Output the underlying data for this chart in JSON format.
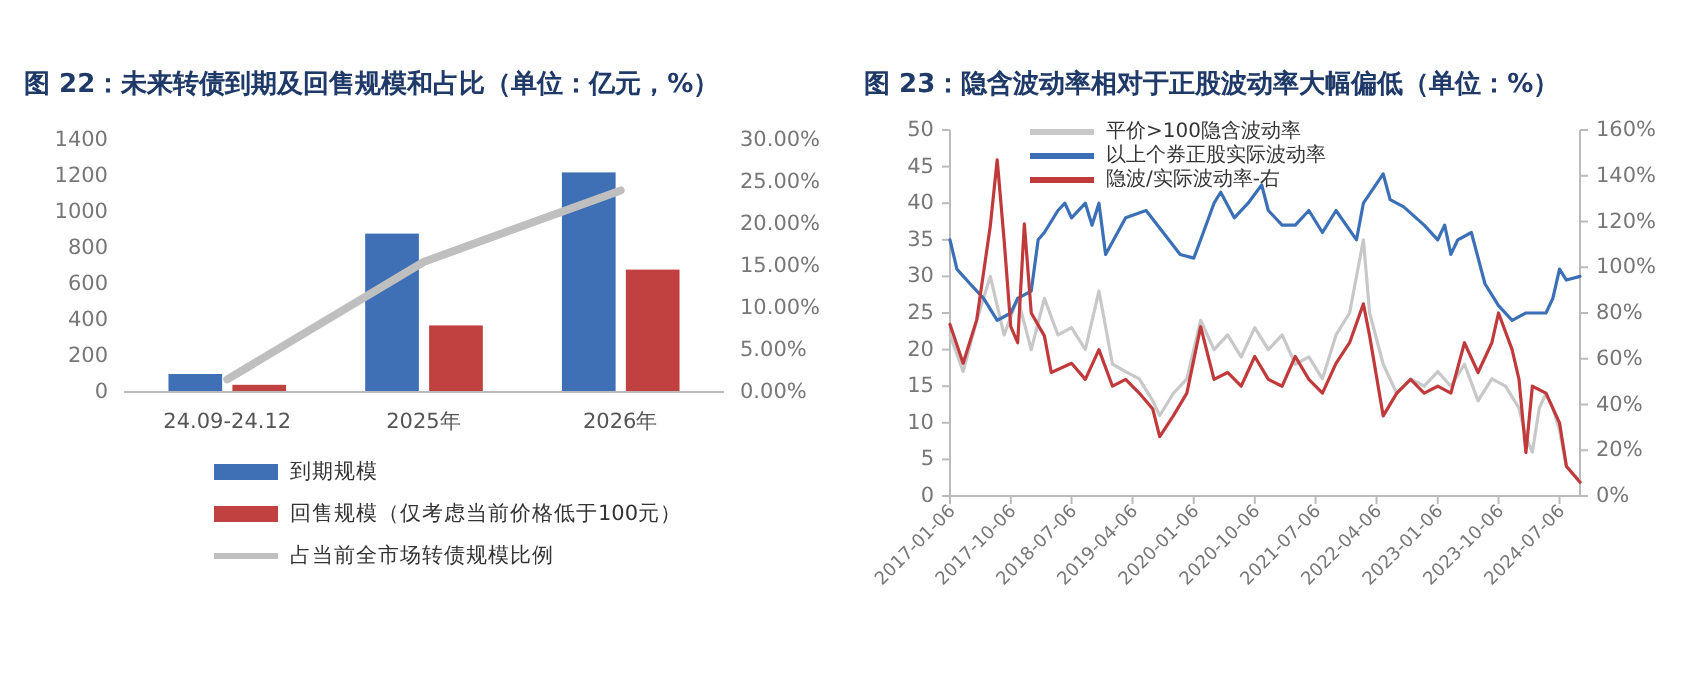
{
  "chart_data": [
    {
      "type": "bar",
      "title": "图 22：未来转债到期及回售规模和占比（单位：亿元，%）",
      "categories": [
        "24.09-24.12",
        "2025年",
        "2026年"
      ],
      "ylim": [
        0,
        1400
      ],
      "yticks": [
        0,
        200,
        400,
        600,
        800,
        1000,
        1200,
        1400
      ],
      "y2lim": [
        0,
        30
      ],
      "y2ticks": [
        {
          "value": 0,
          "label": "0.00%"
        },
        {
          "value": 5,
          "label": "5.00%"
        },
        {
          "value": 10,
          "label": "10.00%"
        },
        {
          "value": 15,
          "label": "15.00%"
        },
        {
          "value": 20,
          "label": "20.00%"
        },
        {
          "value": 25,
          "label": "25.00%"
        },
        {
          "value": 30,
          "label": "30.00%"
        }
      ],
      "legend": "bottom",
      "series": [
        {
          "name": "到期规模",
          "color": "#3f6fb5",
          "values": [
            100,
            880,
            1220
          ]
        },
        {
          "name": "回售规模（仅考虑当前价格低于100元）",
          "color": "#c0413f",
          "values": [
            40,
            370,
            680
          ]
        },
        {
          "name": "占当前全市场转债规模比例",
          "type": "line",
          "axis": "y2",
          "color": "#bfbfbf",
          "values": [
            1.5,
            15.5,
            24
          ]
        }
      ]
    },
    {
      "type": "line",
      "title": "图 23：隐含波动率相对于正股波动率大幅偏低（单位：%）",
      "xlim": [
        "2017-01-06",
        "2024-10-06"
      ],
      "xticks": [
        "2017-01-06",
        "2017-10-06",
        "2018-07-06",
        "2019-04-06",
        "2020-01-06",
        "2020-10-06",
        "2021-07-06",
        "2022-04-06",
        "2023-01-06",
        "2023-10-06",
        "2024-07-06"
      ],
      "ylim": [
        0,
        50
      ],
      "yticks": [
        0,
        5,
        10,
        15,
        20,
        25,
        30,
        35,
        40,
        45,
        50
      ],
      "y2lim": [
        0,
        160
      ],
      "y2ticks": [
        {
          "value": 0,
          "label": "0%"
        },
        {
          "value": 20,
          "label": "20%"
        },
        {
          "value": 40,
          "label": "40%"
        },
        {
          "value": 60,
          "label": "60%"
        },
        {
          "value": 80,
          "label": "80%"
        },
        {
          "value": 100,
          "label": "100%"
        },
        {
          "value": 120,
          "label": "120%"
        },
        {
          "value": 140,
          "label": "140%"
        },
        {
          "value": 160,
          "label": "160%"
        }
      ],
      "legend": "top",
      "series": [
        {
          "name": "平价>100隐含波动率",
          "color": "#c8c8c8",
          "x": [
            "2017-01-06",
            "2017-03-06",
            "2017-05-06",
            "2017-07-06",
            "2017-09-06",
            "2017-11-06",
            "2018-01-06",
            "2018-03-06",
            "2018-05-06",
            "2018-07-06",
            "2018-09-06",
            "2018-11-06",
            "2019-01-06",
            "2019-03-06",
            "2019-05-06",
            "2019-07-06",
            "2019-08-06",
            "2019-10-06",
            "2019-12-06",
            "2020-01-06",
            "2020-02-06",
            "2020-04-06",
            "2020-06-06",
            "2020-08-06",
            "2020-10-06",
            "2020-12-06",
            "2021-02-06",
            "2021-04-06",
            "2021-06-06",
            "2021-08-06",
            "2021-10-06",
            "2021-12-06",
            "2022-02-06",
            "2022-03-06",
            "2022-05-06",
            "2022-07-06",
            "2022-09-06",
            "2022-11-06",
            "2023-01-06",
            "2023-03-06",
            "2023-05-06",
            "2023-07-06",
            "2023-09-06",
            "2023-11-06",
            "2024-01-06",
            "2024-02-06",
            "2024-03-06",
            "2024-04-06",
            "2024-05-06",
            "2024-06-06",
            "2024-07-06",
            "2024-08-06",
            "2024-10-06"
          ],
          "values": [
            22,
            17,
            24,
            30,
            22,
            27,
            20,
            27,
            22,
            23,
            20,
            28,
            18,
            17,
            16,
            13,
            11,
            14,
            16,
            20,
            24,
            20,
            22,
            19,
            23,
            20,
            22,
            18,
            19,
            16,
            22,
            25,
            35,
            25,
            18,
            14,
            16,
            15,
            17,
            15,
            18,
            13,
            16,
            15,
            12,
            8,
            6,
            12,
            14,
            12,
            9,
            4,
            2
          ]
        },
        {
          "name": "以上个券正股实际波动率",
          "color": "#3b6fb6",
          "x": [
            "2017-01-06",
            "2017-02-06",
            "2017-04-06",
            "2017-06-06",
            "2017-08-06",
            "2017-10-06",
            "2017-11-06",
            "2018-01-06",
            "2018-02-06",
            "2018-03-06",
            "2018-05-06",
            "2018-06-06",
            "2018-07-06",
            "2018-09-06",
            "2018-10-06",
            "2018-11-06",
            "2018-12-06",
            "2019-03-06",
            "2019-06-06",
            "2019-11-06",
            "2020-01-06",
            "2020-02-06",
            "2020-04-06",
            "2020-05-06",
            "2020-07-06",
            "2020-09-06",
            "2020-11-06",
            "2020-12-06",
            "2021-02-06",
            "2021-04-06",
            "2021-06-06",
            "2021-08-06",
            "2021-10-06",
            "2022-01-06",
            "2022-02-06",
            "2022-05-06",
            "2022-06-06",
            "2022-08-06",
            "2022-11-06",
            "2023-01-06",
            "2023-02-06",
            "2023-03-06",
            "2023-04-06",
            "2023-06-06",
            "2023-08-06",
            "2023-10-06",
            "2023-12-06",
            "2024-02-06",
            "2024-05-06",
            "2024-06-06",
            "2024-07-06",
            "2024-08-06",
            "2024-10-06"
          ],
          "values": [
            35,
            31,
            29,
            27,
            24,
            25,
            27,
            28,
            35,
            36,
            39,
            40,
            38,
            40,
            37,
            40,
            33,
            38,
            39,
            33,
            32.5,
            35,
            40,
            41.5,
            38,
            40,
            42.5,
            39,
            37,
            37,
            39,
            36,
            39,
            35,
            40,
            44,
            40.5,
            39.5,
            37,
            35,
            37,
            33,
            35,
            36,
            29,
            26,
            24,
            25,
            25,
            27,
            31,
            29.5,
            30
          ]
        },
        {
          "name": "隐波/实际波动率-右",
          "color": "#c0393b",
          "axis": "y2",
          "x": [
            "2017-01-06",
            "2017-03-06",
            "2017-05-06",
            "2017-07-06",
            "2017-08-06",
            "2017-09-06",
            "2017-10-06",
            "2017-11-06",
            "2017-12-06",
            "2018-01-06",
            "2018-03-06",
            "2018-04-06",
            "2018-07-06",
            "2018-09-06",
            "2018-11-06",
            "2019-01-06",
            "2019-03-06",
            "2019-05-06",
            "2019-07-06",
            "2019-08-06",
            "2019-10-06",
            "2019-12-06",
            "2020-02-06",
            "2020-04-06",
            "2020-06-06",
            "2020-08-06",
            "2020-10-06",
            "2020-12-06",
            "2021-02-06",
            "2021-04-06",
            "2021-06-06",
            "2021-08-06",
            "2021-10-06",
            "2021-12-06",
            "2022-02-06",
            "2022-03-06",
            "2022-05-06",
            "2022-07-06",
            "2022-09-06",
            "2022-11-06",
            "2023-01-06",
            "2023-03-06",
            "2023-05-06",
            "2023-07-06",
            "2023-09-06",
            "2023-10-06",
            "2023-12-06",
            "2024-01-06",
            "2024-02-06",
            "2024-03-06",
            "2024-05-06",
            "2024-07-06",
            "2024-08-06",
            "2024-10-06"
          ],
          "values": [
            75,
            58,
            77,
            118,
            147,
            112,
            74,
            67,
            119,
            80,
            70,
            54,
            58,
            51,
            64,
            48,
            51,
            45,
            38,
            26,
            35,
            45,
            74,
            51,
            54,
            48,
            61,
            51,
            48,
            61,
            51,
            45,
            58,
            67,
            84,
            70,
            35,
            45,
            51,
            45,
            48,
            45,
            67,
            54,
            67,
            80,
            64,
            51,
            19,
            48,
            45,
            32,
            13,
            6
          ]
        }
      ]
    }
  ]
}
